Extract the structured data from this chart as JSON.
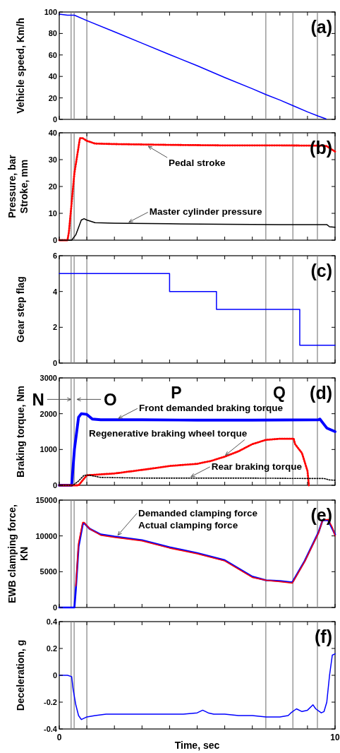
{
  "chart_data": [
    {
      "type": "line",
      "ylabel": "Vehicle speed, Km/h",
      "xlim": [
        0,
        10
      ],
      "xticks": [
        {
          "value": 0,
          "label": null
        },
        {
          "value": 1,
          "label": null
        },
        {
          "value": 2,
          "label": null
        },
        {
          "value": 3,
          "label": null
        },
        {
          "value": 4,
          "label": null
        },
        {
          "value": 5,
          "label": null
        },
        {
          "value": 6,
          "label": null
        },
        {
          "value": 7,
          "label": null
        },
        {
          "value": 8,
          "label": null
        },
        {
          "value": 9,
          "label": null
        },
        {
          "value": 10,
          "label": null
        }
      ],
      "ylim": [
        0,
        100
      ],
      "yticks": [
        0,
        20,
        40,
        60,
        80,
        100
      ],
      "tick_labels": "y",
      "annotations": [
        "(a)"
      ],
      "ref_lines": [
        {
          "axis": "x",
          "value": 0.43,
          "color": "#808080"
        },
        {
          "axis": "x",
          "value": 0.54,
          "color": "#808080"
        },
        {
          "axis": "x",
          "value": 1.0,
          "color": "#808080"
        },
        {
          "axis": "x",
          "value": 7.49,
          "color": "#808080"
        },
        {
          "axis": "x",
          "value": 8.47,
          "color": "#808080"
        },
        {
          "axis": "x",
          "value": 9.36,
          "color": "#808080"
        }
      ],
      "series": [
        {
          "color": "#0000ff",
          "x": [
            0,
            0.3,
            0.55,
            1,
            2,
            3,
            4,
            5,
            6,
            7,
            7.5,
            8,
            8.5,
            9,
            9.4,
            9.67
          ],
          "values": [
            98,
            97,
            97,
            92,
            81.6,
            71,
            60.4,
            50,
            39,
            28.5,
            23,
            18,
            12.5,
            7,
            3,
            0.5
          ]
        }
      ]
    },
    {
      "type": "line",
      "ylabel": "Pressure, bar\nStroke, mm",
      "xlim": [
        0,
        10
      ],
      "xticks": [
        {
          "value": 0,
          "label": null
        },
        {
          "value": 1,
          "label": null
        },
        {
          "value": 2,
          "label": null
        },
        {
          "value": 3,
          "label": null
        },
        {
          "value": 4,
          "label": null
        },
        {
          "value": 5,
          "label": null
        },
        {
          "value": 6,
          "label": null
        },
        {
          "value": 7,
          "label": null
        },
        {
          "value": 8,
          "label": null
        },
        {
          "value": 9,
          "label": null
        },
        {
          "value": 10,
          "label": null
        }
      ],
      "ylim": [
        0,
        40
      ],
      "yticks": [
        0,
        10,
        20,
        30,
        40
      ],
      "tick_labels": "y",
      "annotations": [
        "(b)",
        {
          "text": "Pedal stroke",
          "x": 3.2,
          "y": 35.5
        },
        {
          "text": "Master cylinder pressure",
          "x": 2.5,
          "y": 6.2
        }
      ],
      "ref_lines": [
        {
          "axis": "x",
          "value": 0.43,
          "color": "#808080"
        },
        {
          "axis": "x",
          "value": 0.54,
          "color": "#808080"
        },
        {
          "axis": "x",
          "value": 1.0,
          "color": "#808080"
        },
        {
          "axis": "x",
          "value": 7.49,
          "color": "#808080"
        },
        {
          "axis": "x",
          "value": 8.47,
          "color": "#808080"
        },
        {
          "axis": "x",
          "value": 9.36,
          "color": "#808080"
        }
      ],
      "series": [
        {
          "color": "#ff0000",
          "line_style": "dotted",
          "x": [
            0,
            0.3,
            0.35,
            0.55,
            0.75,
            0.85,
            1.0,
            1.3,
            2,
            4,
            6,
            8,
            9.6,
            9.7,
            10
          ],
          "values": [
            0,
            0,
            3,
            25,
            38,
            38,
            37,
            36,
            35.8,
            35.5,
            35.3,
            35.3,
            35.2,
            35,
            33
          ]
        },
        {
          "color": "#000000",
          "x": [
            0,
            0.45,
            0.6,
            0.8,
            0.9,
            1.0,
            1.3,
            2,
            4,
            6,
            8,
            9.7,
            9.8,
            10
          ],
          "values": [
            0,
            0,
            2,
            7.5,
            8,
            7.5,
            6.5,
            6.3,
            6.1,
            5.9,
            5.8,
            5.8,
            5,
            4.8
          ]
        }
      ]
    },
    {
      "type": "step",
      "ylabel": "Gear step flag",
      "xlim": [
        0,
        10
      ],
      "xticks": [
        {
          "value": 0,
          "label": null
        },
        {
          "value": 1,
          "label": null
        },
        {
          "value": 2,
          "label": null
        },
        {
          "value": 3,
          "label": null
        },
        {
          "value": 4,
          "label": null
        },
        {
          "value": 5,
          "label": null
        },
        {
          "value": 6,
          "label": null
        },
        {
          "value": 7,
          "label": null
        },
        {
          "value": 8,
          "label": null
        },
        {
          "value": 9,
          "label": null
        },
        {
          "value": 10,
          "label": null
        }
      ],
      "ylim": [
        0,
        6
      ],
      "yticks": [
        0,
        2,
        4,
        6
      ],
      "tick_labels": "y",
      "annotations": [
        "(c)"
      ],
      "ref_lines": [
        {
          "axis": "x",
          "value": 0.43,
          "color": "#808080"
        },
        {
          "axis": "x",
          "value": 0.54,
          "color": "#808080"
        },
        {
          "axis": "x",
          "value": 1.0,
          "color": "#808080"
        },
        {
          "axis": "x",
          "value": 7.49,
          "color": "#808080"
        },
        {
          "axis": "x",
          "value": 8.47,
          "color": "#808080"
        },
        {
          "axis": "x",
          "value": 9.36,
          "color": "#808080"
        }
      ],
      "series": [
        {
          "color": "#0000ff",
          "x": [
            0,
            4,
            5.7,
            8.72,
            10
          ],
          "values": [
            5,
            4,
            3,
            1,
            1
          ]
        }
      ]
    },
    {
      "type": "line",
      "ylabel": "Braking torque, Nm",
      "xlim": [
        0,
        10
      ],
      "xticks": [
        {
          "value": 0,
          "label": null
        },
        {
          "value": 1,
          "label": null
        },
        {
          "value": 2,
          "label": null
        },
        {
          "value": 3,
          "label": null
        },
        {
          "value": 4,
          "label": null
        },
        {
          "value": 5,
          "label": null
        },
        {
          "value": 6,
          "label": null
        },
        {
          "value": 7,
          "label": null
        },
        {
          "value": 8,
          "label": null
        },
        {
          "value": 9,
          "label": null
        },
        {
          "value": 10,
          "label": null
        }
      ],
      "ylim": [
        0,
        3000
      ],
      "yticks": [
        0,
        1000,
        2000,
        3000
      ],
      "tick_labels": "y",
      "annotations": [
        "(d)",
        {
          "text": "Front demanded braking torque",
          "x": 2.12,
          "y": 1830
        },
        {
          "text": "Regenerative braking wheel torque",
          "x": 6,
          "y": 800
        },
        {
          "text": "Rear braking torque",
          "x": 4.75,
          "y": 200
        },
        "P",
        "Q"
      ],
      "ref_lines": [
        {
          "axis": "x",
          "value": 0.43,
          "color": "#808080",
          "label": "N"
        },
        {
          "axis": "x",
          "value": 0.54,
          "color": "#808080",
          "label": "O"
        },
        {
          "axis": "x",
          "value": 1.0,
          "color": "#808080"
        },
        {
          "axis": "x",
          "value": 7.49,
          "color": "#808080"
        },
        {
          "axis": "x",
          "value": 8.47,
          "color": "#808080"
        },
        {
          "axis": "x",
          "value": 9.36,
          "color": "#808080"
        }
      ],
      "series": [
        {
          "color": "#0000ff",
          "x": [
            0,
            0.45,
            0.55,
            0.7,
            0.8,
            1.0,
            1.2,
            1.5,
            3,
            5,
            7,
            9.4,
            9.45,
            9.6,
            9.7,
            10
          ],
          "values": [
            0,
            0,
            1000,
            1900,
            2000,
            1980,
            1850,
            1830,
            1830,
            1820,
            1820,
            1830,
            1850,
            1700,
            1600,
            1500
          ]
        },
        {
          "color": "#ff0000",
          "line_style": "dotted",
          "x": [
            0,
            0.7,
            1.0,
            2,
            3,
            4,
            5,
            5.5,
            6,
            6.5,
            7,
            7.5,
            8,
            8.5,
            8.55,
            8.8,
            9.0,
            9.05
          ],
          "values": [
            0,
            0,
            280,
            330,
            430,
            540,
            600,
            680,
            800,
            950,
            1150,
            1270,
            1300,
            1300,
            1150,
            900,
            400,
            0
          ]
        },
        {
          "color": "#000000",
          "line_style": "dotted",
          "x": [
            0,
            0.5,
            0.7,
            0.9,
            1.1,
            1.5,
            3,
            5,
            7,
            9,
            9.6,
            9.8,
            10
          ],
          "values": [
            0,
            0,
            120,
            280,
            280,
            220,
            200,
            200,
            200,
            190,
            190,
            150,
            140
          ]
        }
      ]
    },
    {
      "type": "line",
      "ylabel": "EWB clamping force,\nKN",
      "xlim": [
        0,
        10
      ],
      "xticks": [
        {
          "value": 0,
          "label": null
        },
        {
          "value": 1,
          "label": null
        },
        {
          "value": 2,
          "label": null
        },
        {
          "value": 3,
          "label": null
        },
        {
          "value": 4,
          "label": null
        },
        {
          "value": 5,
          "label": null
        },
        {
          "value": 6,
          "label": null
        },
        {
          "value": 7,
          "label": null
        },
        {
          "value": 8,
          "label": null
        },
        {
          "value": 9,
          "label": null
        },
        {
          "value": 10,
          "label": null
        }
      ],
      "ylim": [
        0,
        15000
      ],
      "yticks": [
        0,
        5000,
        10000,
        15000
      ],
      "tick_labels": "y",
      "annotations": [
        "(e)",
        {
          "text": "Demanded clamping force",
          "x": 2.1,
          "y": 9900
        },
        {
          "text": "Actual clamping force",
          "x": 2.1,
          "y": 9900
        }
      ],
      "ref_lines": [
        {
          "axis": "x",
          "value": 0.43,
          "color": "#808080"
        },
        {
          "axis": "x",
          "value": 0.54,
          "color": "#808080"
        },
        {
          "axis": "x",
          "value": 1.0,
          "color": "#808080"
        },
        {
          "axis": "x",
          "value": 7.49,
          "color": "#808080"
        },
        {
          "axis": "x",
          "value": 8.47,
          "color": "#808080"
        },
        {
          "axis": "x",
          "value": 9.36,
          "color": "#808080"
        }
      ],
      "series": [
        {
          "color": "#0000ff",
          "x": [
            0,
            0.55,
            0.6,
            0.7,
            0.85,
            0.9,
            1.1,
            1.5,
            2,
            3,
            4,
            5,
            6,
            7,
            7.5,
            8,
            8.45,
            8.9,
            9.4,
            9.55,
            9.75,
            9.9,
            10
          ],
          "values": [
            0,
            0,
            2500,
            8500,
            11600,
            11800,
            11000,
            10200,
            9900,
            9400,
            8400,
            7600,
            6600,
            4300,
            3800,
            3700,
            3500,
            6500,
            10500,
            12200,
            12200,
            11000,
            10200
          ]
        },
        {
          "color": "#ff0000",
          "x": [
            0.6,
            0.7,
            0.85,
            0.9,
            1.1,
            1.5,
            2,
            3,
            4,
            5,
            6,
            7,
            7.5,
            8,
            8.45,
            8.9,
            9.4,
            9.55,
            9.75,
            9.9,
            10
          ],
          "values": [
            3000,
            9000,
            11900,
            11900,
            11000,
            10100,
            9800,
            9300,
            8300,
            7500,
            6500,
            4200,
            3800,
            3600,
            3400,
            6400,
            10400,
            12200,
            12300,
            11200,
            10000
          ]
        }
      ]
    },
    {
      "type": "line",
      "ylabel": "Deceleration, g",
      "xlabel": "Time, sec",
      "xlim": [
        0,
        10
      ],
      "xticks": [
        0,
        {
          "value": 1,
          "label": null
        },
        {
          "value": 2,
          "label": null
        },
        {
          "value": 3,
          "label": null
        },
        {
          "value": 4,
          "label": null
        },
        {
          "value": 5,
          "label": null
        },
        {
          "value": 6,
          "label": null
        },
        {
          "value": 7,
          "label": null
        },
        {
          "value": 8,
          "label": null
        },
        {
          "value": 9,
          "label": null
        },
        10
      ],
      "ylim": [
        -0.4,
        0.4
      ],
      "yticks": [
        -0.4,
        -0.2,
        0,
        0.2,
        0.4
      ],
      "annotations": [
        "(f)"
      ],
      "ref_lines": [
        {
          "axis": "x",
          "value": 0.43,
          "color": "#808080"
        },
        {
          "axis": "x",
          "value": 0.54,
          "color": "#808080"
        },
        {
          "axis": "x",
          "value": 1.0,
          "color": "#808080"
        },
        {
          "axis": "x",
          "value": 7.49,
          "color": "#808080"
        },
        {
          "axis": "x",
          "value": 8.47,
          "color": "#808080"
        },
        {
          "axis": "x",
          "value": 9.36,
          "color": "#808080"
        }
      ],
      "series": [
        {
          "color": "#0000ff",
          "x": [
            0,
            0.3,
            0.45,
            0.5,
            0.6,
            0.7,
            0.8,
            1.0,
            1.3,
            1.7,
            2,
            2.5,
            3,
            3.5,
            4,
            4.5,
            5,
            5.2,
            5.4,
            5.6,
            6,
            6.5,
            7,
            7.5,
            8,
            8.3,
            8.4,
            8.6,
            8.8,
            9.0,
            9.2,
            9.3,
            9.5,
            9.6,
            9.7,
            9.8,
            9.9,
            10
          ],
          "values": [
            0,
            0,
            -0.01,
            -0.1,
            -0.22,
            -0.3,
            -0.33,
            -0.31,
            -0.3,
            -0.29,
            -0.29,
            -0.29,
            -0.29,
            -0.29,
            -0.29,
            -0.29,
            -0.28,
            -0.26,
            -0.28,
            -0.29,
            -0.29,
            -0.3,
            -0.3,
            -0.31,
            -0.31,
            -0.3,
            -0.28,
            -0.25,
            -0.27,
            -0.26,
            -0.22,
            -0.25,
            -0.28,
            -0.27,
            -0.2,
            0,
            0.15,
            0.16
          ]
        }
      ]
    }
  ]
}
